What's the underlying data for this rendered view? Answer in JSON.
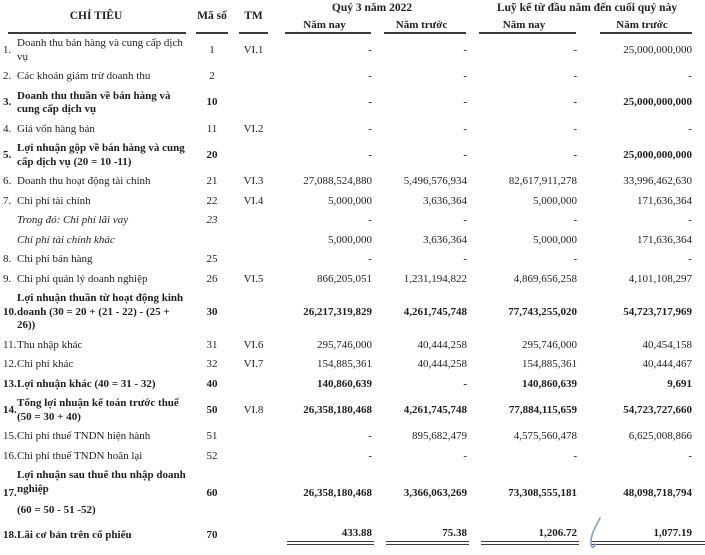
{
  "table": {
    "headers": {
      "chi_tieu": "CHỈ TIÊU",
      "ma_so": "Mã số",
      "tm": "TM",
      "group1": "Quý 3 năm 2022",
      "group2": "Luỹ kế từ đầu năm đến cuối quý này",
      "sub": [
        "Năm nay",
        "Năm trước",
        "Năm nay",
        "Năm trước"
      ]
    },
    "rows": [
      {
        "num": "1.",
        "label": "Doanh thu bán hàng và cung cấp dịch vụ",
        "code": "1",
        "tm": "VI.1",
        "values": [
          "-",
          "-",
          "-",
          "25,000,000,000"
        ]
      },
      {
        "num": "2.",
        "label": "Các khoản giảm trừ doanh thu",
        "code": "2",
        "tm": "",
        "values": [
          "-",
          "-",
          "-",
          "-"
        ]
      },
      {
        "num": "3.",
        "label": "Doanh thu thuần về bán hàng và cung cấp dịch vụ",
        "code": "10",
        "tm": "",
        "bold": true,
        "values": [
          "-",
          "-",
          "-",
          "25,000,000,000"
        ]
      },
      {
        "num": "4.",
        "label": "Giá vốn hàng bán",
        "code": "11",
        "tm": "VI.2",
        "values": [
          "-",
          "-",
          "-",
          "-"
        ]
      },
      {
        "num": "5.",
        "label": "Lợi nhuận gộp về bán hàng và cung cấp dịch vụ (20 = 10 -11)",
        "code": "20",
        "tm": "",
        "bold": true,
        "values": [
          "-",
          "-",
          "-",
          "25,000,000,000"
        ]
      },
      {
        "num": "6.",
        "label": "Doanh thu hoạt động tài chính",
        "code": "21",
        "tm": "VI.3",
        "values": [
          "27,088,524,880",
          "5,496,576,934",
          "82,617,911,278",
          "33,996,462,630"
        ]
      },
      {
        "num": "7.",
        "label": "Chi phí tài chính",
        "code": "22",
        "tm": "VI.4",
        "values": [
          "5,000,000",
          "3,636,364",
          "5,000,000",
          "171,636,364"
        ]
      },
      {
        "num": "",
        "label": "Trong đó: Chi phí lãi vay",
        "code": "23",
        "tm": "",
        "italic": true,
        "values": [
          "-",
          "-",
          "-",
          "-"
        ]
      },
      {
        "num": "",
        "label": "Chi phí tài chính khác",
        "code": "",
        "tm": "",
        "italic": true,
        "values": [
          "5,000,000",
          "3,636,364",
          "5,000,000",
          "171,636,364"
        ]
      },
      {
        "num": "8.",
        "label": "Chi phí bán hàng",
        "code": "25",
        "tm": "",
        "values": [
          "-",
          "-",
          "-",
          "-"
        ]
      },
      {
        "num": "9.",
        "label": "Chi phí quản lý doanh nghiệp",
        "code": "26",
        "tm": "VI.5",
        "values": [
          "866,205,051",
          "1,231,194,822",
          "4,869,656,258",
          "4,101,108,297"
        ]
      },
      {
        "num": "10.",
        "label": "Lợi nhuận thuần từ hoạt động kinh doanh  (30 = 20 + (21 - 22) - (25 + 26))",
        "code": "30",
        "tm": "",
        "bold": true,
        "values": [
          "26,217,319,829",
          "4,261,745,748",
          "77,743,255,020",
          "54,723,717,969"
        ]
      },
      {
        "num": "11.",
        "label": "Thu nhập khác",
        "code": "31",
        "tm": "VI.6",
        "values": [
          "295,746,000",
          "40,444,258",
          "295,746,000",
          "40,454,158"
        ]
      },
      {
        "num": "12.",
        "label": "Chi phí khác",
        "code": "32",
        "tm": "VI.7",
        "values": [
          "154,885,361",
          "40,444,258",
          "154,885,361",
          "40,444,467"
        ]
      },
      {
        "num": "13.",
        "label": "Lợi nhuận khác (40 = 31 - 32)",
        "code": "40",
        "tm": "",
        "bold": true,
        "values": [
          "140,860,639",
          "-",
          "140,860,639",
          "9,691"
        ]
      },
      {
        "num": "14.",
        "label": "Tổng lợi nhuận kế toán trước thuế (50 = 30 + 40)",
        "code": "50",
        "tm": "VI.8",
        "bold": true,
        "values": [
          "26,358,180,468",
          "4,261,745,748",
          "77,884,115,659",
          "54,723,727,660"
        ]
      },
      {
        "num": "15.",
        "label": "Chi phí thuế TNDN hiện hành",
        "code": "51",
        "tm": "",
        "values": [
          "-",
          "895,682,479",
          "4,575,560,478",
          "6,625,008,866"
        ]
      },
      {
        "num": "16.",
        "label": "Chi phí thuế TNDN hoãn lại",
        "code": "52",
        "tm": "",
        "values": [
          "-",
          "-",
          "-",
          "-"
        ]
      },
      {
        "num": "17.",
        "label": "Lợi nhuận sau thuế thu nhập doanh nghiệp",
        "label2": "(60 = 50 - 51 -52)",
        "code": "60",
        "tm": "",
        "bold": true,
        "values": [
          "26,358,180,468",
          "3,366,063,269",
          "73,308,555,181",
          "48,098,718,794"
        ]
      },
      {
        "num": "18.",
        "label": "Lãi cơ bản trên cổ phiếu",
        "code": "70",
        "tm": "",
        "bold": true,
        "last": true,
        "values": [
          "433.88",
          "75.38",
          "1,206.72",
          "1,077.19"
        ]
      }
    ]
  },
  "annotation": {
    "pen_mark_color": "#7d9ed6"
  }
}
